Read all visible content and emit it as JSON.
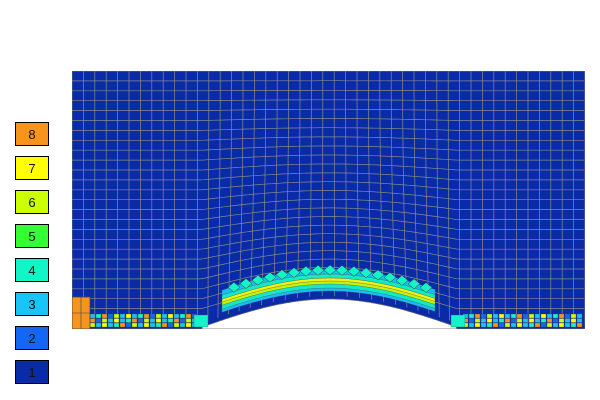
{
  "legend": {
    "items": [
      {
        "label": "8",
        "color": "#f7941d"
      },
      {
        "label": "7",
        "color": "#ffff00"
      },
      {
        "label": "6",
        "color": "#ccff00"
      },
      {
        "label": "5",
        "color": "#33ff33"
      },
      {
        "label": "4",
        "color": "#11f5c7"
      },
      {
        "label": "3",
        "color": "#19c5f6"
      },
      {
        "label": "2",
        "color": "#1467f5"
      },
      {
        "label": "1",
        "color": "#0a2ba8"
      }
    ]
  },
  "mesh": {
    "background_color": "#0a2ba8",
    "grid_color": "#8a8a8a",
    "bump_color": "#ffffff"
  }
}
